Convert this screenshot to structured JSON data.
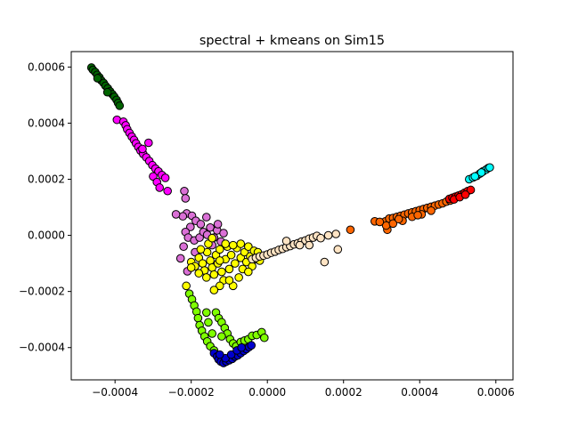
{
  "chart_data": {
    "type": "scatter",
    "title": "spectral + kmeans on Sim15",
    "xlabel": "",
    "ylabel": "",
    "xlim": [
      -0.000515,
      0.000645
    ],
    "ylim": [
      -0.000515,
      0.000655
    ],
    "xticks": [
      {
        "value": -0.0004,
        "label": "−0.0004"
      },
      {
        "value": -0.0002,
        "label": "−0.0002"
      },
      {
        "value": 0.0,
        "label": "0.0000"
      },
      {
        "value": 0.0002,
        "label": "0.0002"
      },
      {
        "value": 0.0004,
        "label": "0.0004"
      },
      {
        "value": 0.0006,
        "label": "0.0006"
      }
    ],
    "yticks": [
      {
        "value": -0.0004,
        "label": "−0.0004"
      },
      {
        "value": -0.0002,
        "label": "−0.0002"
      },
      {
        "value": 0.0,
        "label": "0.0000"
      },
      {
        "value": 0.0002,
        "label": "0.0002"
      },
      {
        "value": 0.0004,
        "label": "0.0004"
      },
      {
        "value": 0.0006,
        "label": "0.0006"
      }
    ],
    "grid": false,
    "marker_edge_color": "#000000",
    "series": [
      {
        "color": "#006400",
        "points": [
          [
            -0.000462,
            0.000598
          ],
          [
            -0.000458,
            0.00059
          ],
          [
            -0.000452,
            0.000582
          ],
          [
            -0.000447,
            0.000572
          ],
          [
            -0.000441,
            0.000563
          ],
          [
            -0.000436,
            0.000552
          ],
          [
            -0.00043,
            0.000543
          ],
          [
            -0.000425,
            0.000533
          ],
          [
            -0.000419,
            0.000524
          ],
          [
            -0.000413,
            0.000513
          ],
          [
            -0.000407,
            0.000503
          ],
          [
            -0.000402,
            0.000494
          ],
          [
            -0.000396,
            0.000483
          ],
          [
            -0.000392,
            0.000472
          ],
          [
            -0.000388,
            0.000462
          ],
          [
            -0.000446,
            0.00056
          ],
          [
            -0.00042,
            0.00051
          ]
        ]
      },
      {
        "color": "#ff00ff",
        "points": [
          [
            -0.000395,
            0.000412
          ],
          [
            -0.000378,
            0.000405
          ],
          [
            -0.000372,
            0.000392
          ],
          [
            -0.000368,
            0.000378
          ],
          [
            -0.000362,
            0.000365
          ],
          [
            -0.000356,
            0.000352
          ],
          [
            -0.00035,
            0.00034
          ],
          [
            -0.000345,
            0.000328
          ],
          [
            -0.000339,
            0.000315
          ],
          [
            -0.000333,
            0.000302
          ],
          [
            -0.000326,
            0.00029
          ],
          [
            -0.000318,
            0.000278
          ],
          [
            -0.00031,
            0.000265
          ],
          [
            -0.000302,
            0.00025
          ],
          [
            -0.000294,
            0.000238
          ],
          [
            -0.000286,
            0.000228
          ],
          [
            -0.000277,
            0.000215
          ],
          [
            -0.000268,
            0.000205
          ],
          [
            -0.000312,
            0.00033
          ],
          [
            -0.0003,
            0.00021
          ],
          [
            -0.00029,
            0.00019
          ],
          [
            -0.000283,
            0.00017
          ],
          [
            -0.000262,
            0.000158
          ],
          [
            -0.000328,
            0.000308
          ]
        ]
      },
      {
        "color": "#da70d6",
        "points": [
          [
            -0.000218,
            0.000158
          ],
          [
            -0.000215,
            0.000132
          ],
          [
            -0.000212,
            7.8e-05
          ],
          [
            -0.000222,
            6.8e-05
          ],
          [
            -0.000198,
            7e-05
          ],
          [
            -0.000188,
            5.2e-05
          ],
          [
            -0.000202,
            3e-05
          ],
          [
            -0.000215,
            1.2e-05
          ],
          [
            -0.000208,
            -8e-06
          ],
          [
            -0.000192,
            -1.8e-05
          ],
          [
            -0.000178,
            -8e-06
          ],
          [
            -0.000168,
            1.2e-05
          ],
          [
            -0.000158,
            2e-06
          ],
          [
            -0.00015,
            2.8e-05
          ],
          [
            -0.00014,
            -8e-06
          ],
          [
            -0.000132,
            1.8e-05
          ],
          [
            -0.000122,
            -2.2e-05
          ],
          [
            -0.000115,
            8e-06
          ],
          [
            -0.00022,
            -4e-05
          ],
          [
            -0.000228,
            -8.2e-05
          ],
          [
            -0.00021,
            -0.000128
          ],
          [
            -0.00019,
            -6e-05
          ],
          [
            -0.000175,
            4e-05
          ],
          [
            -0.00016,
            6.5e-05
          ],
          [
            -0.00024,
            7.5e-05
          ],
          [
            -0.00013,
            4e-05
          ],
          [
            -0.000145,
            -3.5e-05
          ]
        ]
      },
      {
        "color": "#ffff00",
        "points": [
          [
            -0.0002,
            -9.5e-05
          ],
          [
            -0.00019,
            -0.00011
          ],
          [
            -0.00018,
            -8e-05
          ],
          [
            -0.00017,
            -0.0001
          ],
          [
            -0.000165,
            -0.000125
          ],
          [
            -0.000158,
            -6e-05
          ],
          [
            -0.00015,
            -9e-05
          ],
          [
            -0.000145,
            -0.000115
          ],
          [
            -0.00014,
            -0.00014
          ],
          [
            -0.000135,
            -7e-05
          ],
          [
            -0.00013,
            -0.0001
          ],
          [
            -0.000125,
            -5e-05
          ],
          [
            -0.00012,
            -0.00013
          ],
          [
            -0.000115,
            -0.00016
          ],
          [
            -0.00011,
            -8.5e-05
          ],
          [
            -0.000105,
            -4e-05
          ],
          [
            -0.0001,
            -0.00012
          ],
          [
            -9.5e-05,
            -7e-05
          ],
          [
            -9e-05,
            -0.00018
          ],
          [
            -8.5e-05,
            -0.0001
          ],
          [
            -8e-05,
            -4.5e-05
          ],
          [
            -7.5e-05,
            -0.00015
          ],
          [
            -7e-05,
            -8e-05
          ],
          [
            -6.5e-05,
            -0.00012
          ],
          [
            -6e-05,
            -6e-05
          ],
          [
            -5.5e-05,
            -9.5e-05
          ],
          [
            -5e-05,
            -4e-05
          ],
          [
            -4.5e-05,
            -7.5e-05
          ],
          [
            -4e-05,
            -0.00011
          ],
          [
            -3.5e-05,
            -5.5e-05
          ],
          [
            -3e-05,
            -8.5e-05
          ],
          [
            -2.5e-05,
            -6e-05
          ],
          [
            -2e-05,
            -9e-05
          ],
          [
            -0.00016,
            -0.00015
          ],
          [
            -0.000125,
            -0.00018
          ],
          [
            -0.000155,
            -3e-05
          ],
          [
            -0.00011,
            -3e-05
          ],
          [
            -9e-05,
            -3.5e-05
          ],
          [
            -0.00018,
            -0.000135
          ],
          [
            -0.0002,
            -0.000115
          ],
          [
            -0.000213,
            -0.00018
          ],
          [
            -0.00014,
            -0.000195
          ],
          [
            -0.0001,
            -0.00016
          ],
          [
            -7e-05,
            -3e-05
          ],
          [
            -5e-05,
            -0.00013
          ],
          [
            -0.000145,
            -1e-05
          ],
          [
            -0.000125,
            -9e-05
          ],
          [
            -0.000175,
            -5e-05
          ]
        ]
      },
      {
        "color": "#ffe4c4",
        "points": [
          [
            -4e-05,
            -8.5e-05
          ],
          [
            -3e-05,
            -8e-05
          ],
          [
            -2e-05,
            -7.5e-05
          ],
          [
            -1e-05,
            -7.2e-05
          ],
          [
            0.0,
            -6.8e-05
          ],
          [
            1e-05,
            -6.2e-05
          ],
          [
            2e-05,
            -5.8e-05
          ],
          [
            3e-05,
            -5.2e-05
          ],
          [
            4e-05,
            -4.8e-05
          ],
          [
            5e-05,
            -4.2e-05
          ],
          [
            6e-05,
            -3.8e-05
          ],
          [
            7e-05,
            -3.2e-05
          ],
          [
            8e-05,
            -2.8e-05
          ],
          [
            9e-05,
            -2.2e-05
          ],
          [
            0.0001,
            -1.8e-05
          ],
          [
            0.00011,
            -1.2e-05
          ],
          [
            0.00012,
            -8e-06
          ],
          [
            0.00013,
            -2e-06
          ],
          [
            0.00016,
            0.0
          ],
          [
            0.000185,
            -5e-05
          ],
          [
            0.00015,
            -9.5e-05
          ],
          [
            8.5e-05,
            -3.5e-05
          ],
          [
            0.00011,
            -3.5e-05
          ],
          [
            0.00018,
            5e-06
          ],
          [
            5e-05,
            -2e-05
          ],
          [
            0.00014,
            -1e-05
          ]
        ]
      },
      {
        "color": "#7fff00",
        "points": [
          [
            -0.000205,
            -0.000208
          ],
          [
            -0.000198,
            -0.000228
          ],
          [
            -0.000192,
            -0.00025
          ],
          [
            -0.000186,
            -0.000272
          ],
          [
            -0.000182,
            -0.000295
          ],
          [
            -0.000178,
            -0.00032
          ],
          [
            -0.000172,
            -0.00034
          ],
          [
            -0.000165,
            -0.00036
          ],
          [
            -0.000158,
            -0.000378
          ],
          [
            -0.00015,
            -0.000395
          ],
          [
            -0.00014,
            -0.00041
          ],
          [
            -0.000135,
            -0.000275
          ],
          [
            -0.000128,
            -0.000295
          ],
          [
            -0.00012,
            -0.00031
          ],
          [
            -0.000112,
            -0.00033
          ],
          [
            -0.000105,
            -0.00035
          ],
          [
            -9.8e-05,
            -0.00037
          ],
          [
            -9e-05,
            -0.000385
          ],
          [
            -8.2e-05,
            -0.000395
          ],
          [
            -7e-05,
            -0.00038
          ],
          [
            -6e-05,
            -0.000375
          ],
          [
            -5e-05,
            -0.00037
          ],
          [
            -4e-05,
            -0.000358
          ],
          [
            -2.8e-05,
            -0.000355
          ],
          [
            -1.5e-05,
            -0.000345
          ],
          [
            -8e-06,
            -0.000365
          ],
          [
            -0.000145,
            -0.00035
          ],
          [
            -0.000155,
            -0.00031
          ],
          [
            -0.00012,
            -0.00036
          ],
          [
            -0.00016,
            -0.000275
          ]
        ]
      },
      {
        "color": "#0000cd",
        "points": [
          [
            -0.00014,
            -0.00042
          ],
          [
            -0.000132,
            -0.000432
          ],
          [
            -0.000128,
            -0.000442
          ],
          [
            -0.000122,
            -0.00045
          ],
          [
            -0.000115,
            -0.000455
          ],
          [
            -0.000108,
            -0.00045
          ],
          [
            -0.0001,
            -0.000445
          ],
          [
            -9.2e-05,
            -0.00044
          ],
          [
            -8.5e-05,
            -0.000432
          ],
          [
            -7.8e-05,
            -0.000428
          ],
          [
            -7e-05,
            -0.00042
          ],
          [
            -6.2e-05,
            -0.000412
          ],
          [
            -5.5e-05,
            -0.000405
          ],
          [
            -4.8e-05,
            -0.000398
          ],
          [
            -4.2e-05,
            -0.000392
          ],
          [
            -0.00011,
            -0.000438
          ],
          [
            -9.5e-05,
            -0.000425
          ],
          [
            -8e-05,
            -0.00041
          ],
          [
            -0.000125,
            -0.000425
          ],
          [
            -6.8e-05,
            -0.0004
          ]
        ]
      },
      {
        "color": "#ff6600",
        "points": [
          [
            0.00031,
            5e-05
          ],
          [
            0.00032,
            6e-05
          ],
          [
            0.00033,
            6.2e-05
          ],
          [
            0.00034,
            6.6e-05
          ],
          [
            0.00035,
            7e-05
          ],
          [
            0.00036,
            7.4e-05
          ],
          [
            0.00037,
            7.8e-05
          ],
          [
            0.00038,
            8.2e-05
          ],
          [
            0.00039,
            8.6e-05
          ],
          [
            0.0004,
            9e-05
          ],
          [
            0.00041,
            9.4e-05
          ],
          [
            0.00042,
            9.8e-05
          ],
          [
            0.00043,
            0.000102
          ],
          [
            0.00044,
            0.000106
          ],
          [
            0.00045,
            0.00011
          ],
          [
            0.00046,
            0.000114
          ],
          [
            0.00047,
            0.00012
          ],
          [
            0.00048,
            0.000124
          ],
          [
            0.000315,
            2e-05
          ],
          [
            0.000312,
            3.5e-05
          ],
          [
            0.00033,
            4.2e-05
          ],
          [
            0.000355,
            5.2e-05
          ],
          [
            0.00038,
            6.6e-05
          ],
          [
            0.000405,
            7.5e-05
          ],
          [
            0.00043,
            8.8e-05
          ],
          [
            0.000282,
            5e-05
          ],
          [
            0.000295,
            4.8e-05
          ],
          [
            0.000218,
            2e-05
          ],
          [
            0.000345,
            5.8e-05
          ],
          [
            0.000395,
            7.2e-05
          ]
        ]
      },
      {
        "color": "#ff0000",
        "points": [
          [
            0.000478,
            0.00013
          ],
          [
            0.000486,
            0.000134
          ],
          [
            0.000494,
            0.000138
          ],
          [
            0.000502,
            0.000142
          ],
          [
            0.00051,
            0.000146
          ],
          [
            0.000518,
            0.000152
          ],
          [
            0.000526,
            0.000158
          ],
          [
            0.000534,
            0.000162
          ],
          [
            0.00049,
            0.000128
          ],
          [
            0.000505,
            0.000136
          ],
          [
            0.00052,
            0.000145
          ]
        ]
      },
      {
        "color": "#00ffff",
        "points": [
          [
            0.00053,
            0.0002
          ],
          [
            0.00054,
            0.000206
          ],
          [
            0.00055,
            0.000212
          ],
          [
            0.000558,
            0.00022
          ],
          [
            0.000566,
            0.000228
          ],
          [
            0.000574,
            0.000234
          ],
          [
            0.00058,
            0.00024
          ],
          [
            0.000584,
            0.000242
          ],
          [
            0.000545,
            0.00021
          ],
          [
            0.000562,
            0.000224
          ]
        ]
      }
    ]
  }
}
